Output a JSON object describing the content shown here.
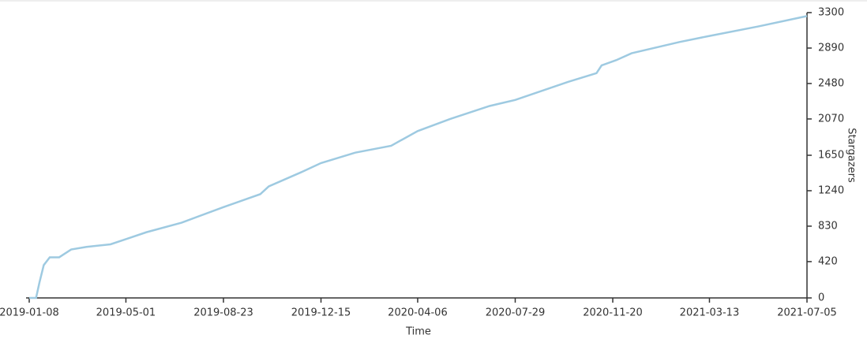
{
  "chart_data": {
    "type": "line",
    "x_label": "Time",
    "y_label": "Stargazers",
    "x": [
      "2019-01-08",
      "2019-01-16",
      "2019-01-20",
      "2019-01-25",
      "2019-02-01",
      "2019-02-12",
      "2019-02-26",
      "2019-03-16",
      "2019-04-13",
      "2019-05-01",
      "2019-05-25",
      "2019-07-05",
      "2019-08-23",
      "2019-10-05",
      "2019-10-15",
      "2019-11-21",
      "2019-12-15",
      "2020-01-24",
      "2020-03-06",
      "2020-04-06",
      "2020-05-14",
      "2020-06-29",
      "2020-07-29",
      "2020-09-29",
      "2020-11-01",
      "2020-11-07",
      "2020-11-24",
      "2020-12-12",
      "2021-02-06",
      "2021-03-13",
      "2021-05-09",
      "2021-07-05"
    ],
    "series": [
      {
        "name": "Stargazers",
        "color": "#9ecae1",
        "values": [
          0,
          0,
          180,
          380,
          470,
          470,
          560,
          590,
          620,
          680,
          760,
          870,
          1050,
          1200,
          1290,
          1450,
          1560,
          1680,
          1760,
          1930,
          2070,
          2220,
          2290,
          2500,
          2600,
          2690,
          2750,
          2830,
          2960,
          3030,
          3140,
          3260
        ]
      }
    ],
    "xlim": [
      "2019-01-08",
      "2021-07-05"
    ],
    "xticks": [
      "2019-01-08",
      "2019-05-01",
      "2019-08-23",
      "2019-12-15",
      "2020-04-06",
      "2020-07-29",
      "2020-11-20",
      "2021-03-13",
      "2021-07-05"
    ],
    "ylim": [
      0,
      3300
    ],
    "yticks": [
      0,
      420,
      830,
      1240,
      1650,
      2070,
      2480,
      2890,
      3300
    ]
  }
}
